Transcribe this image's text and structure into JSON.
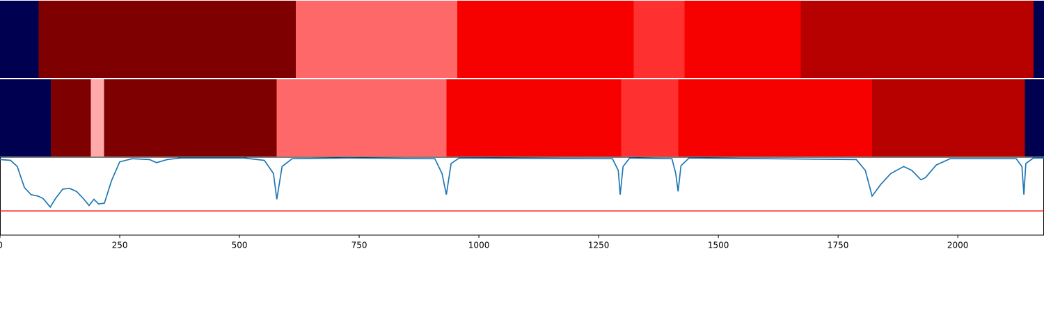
{
  "chart_data": [
    {
      "type": "segments",
      "bounds": [
        0,
        81,
        618,
        955,
        1323,
        1429,
        1672,
        2158,
        2180
      ],
      "colors": [
        "#000050",
        "#7f0000",
        "#ff6868",
        "#f70000",
        "#ff3030",
        "#f70000",
        "#b70000",
        "#000050"
      ]
    },
    {
      "type": "segments",
      "bounds": [
        0,
        106,
        190,
        217,
        578,
        932,
        1297,
        1416,
        1821,
        2140,
        2180
      ],
      "colors": [
        "#000050",
        "#7f0000",
        "#ffaaaa",
        "#7f0000",
        "#ff6868",
        "#f70000",
        "#ff3030",
        "#f70000",
        "#b70000",
        "#000050"
      ]
    },
    {
      "type": "line",
      "x": [
        0,
        22,
        36,
        51,
        65,
        80,
        90,
        105,
        116,
        131,
        145,
        160,
        174,
        186,
        196,
        206,
        218,
        233,
        250,
        276,
        312,
        327,
        349,
        378,
        509,
        552,
        571,
        578,
        589,
        610,
        727,
        908,
        923,
        932,
        942,
        959,
        1279,
        1291,
        1295,
        1301,
        1315,
        1403,
        1411,
        1416,
        1422,
        1439,
        1788,
        1807,
        1821,
        1839,
        1860,
        1887,
        1904,
        1923,
        1933,
        1955,
        1984,
        2122,
        2134,
        2138,
        2142,
        2158,
        2180
      ],
      "values": [
        0.97,
        0.96,
        0.88,
        0.61,
        0.52,
        0.5,
        0.47,
        0.36,
        0.47,
        0.59,
        0.6,
        0.56,
        0.47,
        0.38,
        0.46,
        0.4,
        0.41,
        0.7,
        0.94,
        0.98,
        0.97,
        0.93,
        0.97,
        0.99,
        0.99,
        0.96,
        0.79,
        0.46,
        0.88,
        0.98,
        0.99,
        0.98,
        0.79,
        0.52,
        0.92,
        0.99,
        0.98,
        0.83,
        0.52,
        0.88,
        0.99,
        0.98,
        0.79,
        0.56,
        0.89,
        0.99,
        0.97,
        0.83,
        0.5,
        0.65,
        0.79,
        0.88,
        0.83,
        0.71,
        0.74,
        0.9,
        0.98,
        0.98,
        0.88,
        0.52,
        0.92,
        0.99,
        0.99
      ],
      "color": "#1f77b4",
      "threshold": 0.31,
      "threshold_color": "#ff0000",
      "xlim": [
        0,
        2180
      ],
      "ylim": [
        0,
        1
      ],
      "xticks": [
        0,
        250,
        500,
        750,
        1000,
        1250,
        1500,
        1750,
        2000
      ]
    }
  ]
}
